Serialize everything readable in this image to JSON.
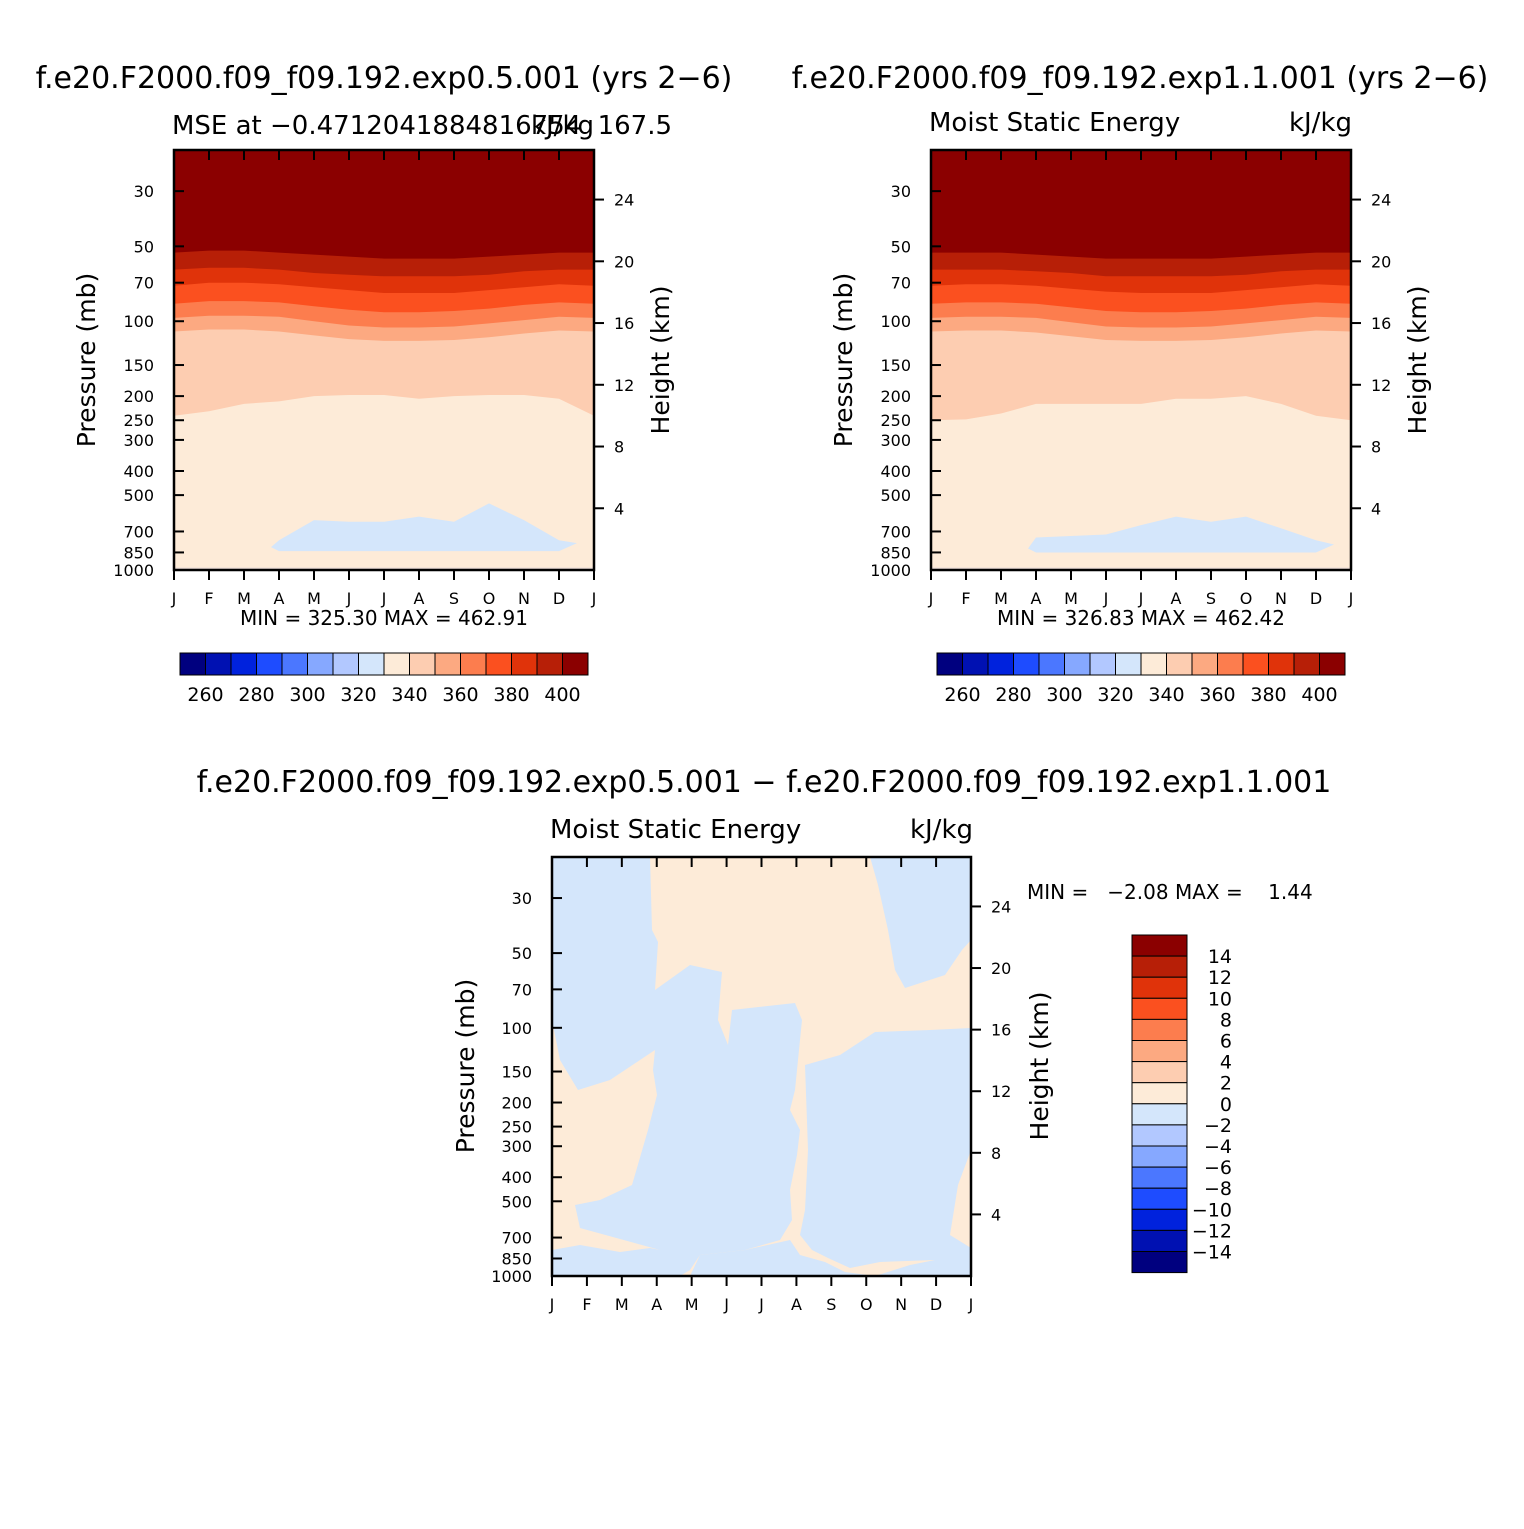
{
  "colors": {
    "scale": [
      "#00007f",
      "#0011b2",
      "#0022dd",
      "#1e4cff",
      "#4b77ff",
      "#86a8ff",
      "#b2c8ff",
      "#d4e6fb",
      "#fdebd8",
      "#fdcdb1",
      "#fca981",
      "#fc7d4e",
      "#fb501f",
      "#e0330a",
      "#b71f07",
      "#8b0000"
    ]
  },
  "chart_data": [
    {
      "type": "heatmap",
      "title": "f.e20.F2000.f09_f09.192.exp0.5.001 (yrs 2−6)",
      "subtitle_left": "MSE at −0.4712041884816754",
      "subtitle_right": "kJ/kg",
      "subtitle_overlap": "167.5",
      "ylabel": "Pressure (mb)",
      "y2label": "Height (km)",
      "x": [
        "J",
        "F",
        "M",
        "A",
        "M",
        "J",
        "J",
        "A",
        "S",
        "O",
        "N",
        "D",
        "J"
      ],
      "yticks": [
        30,
        50,
        70,
        100,
        150,
        200,
        250,
        300,
        400,
        500,
        700,
        850,
        1000
      ],
      "y2ticks": [
        4,
        8,
        12,
        16,
        20,
        24
      ],
      "yscale": "log",
      "min_max_text": "MIN = 325.30 MAX = 462.91",
      "colorbar_ticks": [
        "260",
        "280",
        "300",
        "320",
        "340",
        "360",
        "380",
        "400"
      ],
      "boundaries": [
        {
          "level": 420,
          "p": [
            53,
            52,
            52,
            53,
            54,
            55,
            56,
            56,
            56,
            55,
            54,
            53,
            53
          ]
        },
        {
          "level": 400,
          "p": [
            62,
            61,
            61,
            62,
            64,
            65,
            66,
            66,
            66,
            65,
            63,
            62,
            62
          ]
        },
        {
          "level": 390,
          "p": [
            72,
            70,
            70,
            71,
            73,
            75,
            77,
            77,
            77,
            75,
            73,
            71,
            72
          ]
        },
        {
          "level": 380,
          "p": [
            85,
            83,
            83,
            84,
            87,
            90,
            92,
            92,
            91,
            89,
            86,
            84,
            85
          ]
        },
        {
          "level": 370,
          "p": [
            97,
            95,
            95,
            96,
            100,
            104,
            106,
            106,
            105,
            102,
            99,
            96,
            97
          ]
        },
        {
          "level": 360,
          "p": [
            110,
            108,
            108,
            110,
            114,
            118,
            120,
            120,
            119,
            116,
            112,
            109,
            110
          ]
        },
        {
          "level": 350,
          "p": [
            240,
            230,
            215,
            210,
            200,
            198,
            198,
            205,
            200,
            198,
            198,
            205,
            240
          ]
        },
        {
          "level": 330,
          "p": [
            978,
            978,
            978,
            978,
            978,
            978,
            978,
            978,
            978,
            978,
            978,
            978,
            978
          ]
        }
      ],
      "anomaly": {
        "level": 330,
        "bottom_p": 840,
        "top_p": [
          null,
          null,
          null,
          760,
          630,
          640,
          640,
          610,
          640,
          540,
          630,
          760,
          null
        ]
      }
    },
    {
      "type": "heatmap",
      "title": "f.e20.F2000.f09_f09.192.exp1.1.001 (yrs 2−6)",
      "subtitle_left": "Moist Static Energy",
      "subtitle_right": "kJ/kg",
      "ylabel": "Pressure (mb)",
      "y2label": "Height (km)",
      "x": [
        "J",
        "F",
        "M",
        "A",
        "M",
        "J",
        "J",
        "A",
        "S",
        "O",
        "N",
        "D",
        "J"
      ],
      "yticks": [
        30,
        50,
        70,
        100,
        150,
        200,
        250,
        300,
        400,
        500,
        700,
        850,
        1000
      ],
      "y2ticks": [
        4,
        8,
        12,
        16,
        20,
        24
      ],
      "yscale": "log",
      "min_max_text": "MIN = 326.83 MAX = 462.42",
      "colorbar_ticks": [
        "260",
        "280",
        "300",
        "320",
        "340",
        "360",
        "380",
        "400"
      ],
      "boundaries": [
        {
          "level": 420,
          "p": [
            53,
            53,
            53,
            54,
            55,
            56,
            56,
            56,
            56,
            55,
            54,
            53,
            53
          ]
        },
        {
          "level": 400,
          "p": [
            62,
            62,
            62,
            63,
            64,
            66,
            66,
            66,
            66,
            65,
            63,
            62,
            62
          ]
        },
        {
          "level": 390,
          "p": [
            72,
            71,
            71,
            72,
            74,
            76,
            77,
            77,
            77,
            75,
            73,
            71,
            72
          ]
        },
        {
          "level": 380,
          "p": [
            85,
            84,
            84,
            85,
            88,
            91,
            92,
            92,
            91,
            89,
            86,
            84,
            85
          ]
        },
        {
          "level": 370,
          "p": [
            97,
            96,
            96,
            97,
            101,
            105,
            106,
            106,
            105,
            102,
            99,
            96,
            97
          ]
        },
        {
          "level": 360,
          "p": [
            110,
            109,
            109,
            111,
            115,
            119,
            120,
            120,
            119,
            116,
            112,
            109,
            110
          ]
        },
        {
          "level": 350,
          "p": [
            250,
            248,
            235,
            215,
            215,
            215,
            215,
            205,
            205,
            200,
            215,
            240,
            250
          ]
        },
        {
          "level": 330,
          "p": [
            978,
            978,
            978,
            978,
            978,
            978,
            978,
            978,
            978,
            978,
            978,
            978,
            978
          ]
        }
      ],
      "anomaly": {
        "level": 330,
        "bottom_p": 850,
        "top_p": [
          null,
          null,
          null,
          740,
          730,
          720,
          660,
          610,
          640,
          610,
          680,
          760,
          null
        ]
      }
    },
    {
      "type": "heatmap",
      "title": "f.e20.F2000.f09_f09.192.exp0.5.001 − f.e20.F2000.f09_f09.192.exp1.1.001",
      "subtitle_left": "Moist Static Energy",
      "subtitle_right": "kJ/kg",
      "ylabel": "Pressure (mb)",
      "y2label": "Height (km)",
      "x": [
        "J",
        "F",
        "M",
        "A",
        "M",
        "J",
        "J",
        "A",
        "S",
        "O",
        "N",
        "D",
        "J"
      ],
      "yticks": [
        30,
        50,
        70,
        100,
        150,
        200,
        250,
        300,
        400,
        500,
        700,
        850,
        1000
      ],
      "y2ticks": [
        4,
        8,
        12,
        16,
        20,
        24
      ],
      "yscale": "log",
      "min_max_text": "MIN =   −2.08 MAX =    1.44",
      "colorbar_ticks": [
        "14",
        "12",
        "10",
        "8",
        "6",
        "4",
        "2",
        "0",
        "−2",
        "−4",
        "−6",
        "−8",
        "−10",
        "−12",
        "−14"
      ],
      "colors_used": {
        "positive": "#fdebd8",
        "negative": "#d4e6fb"
      }
    }
  ]
}
